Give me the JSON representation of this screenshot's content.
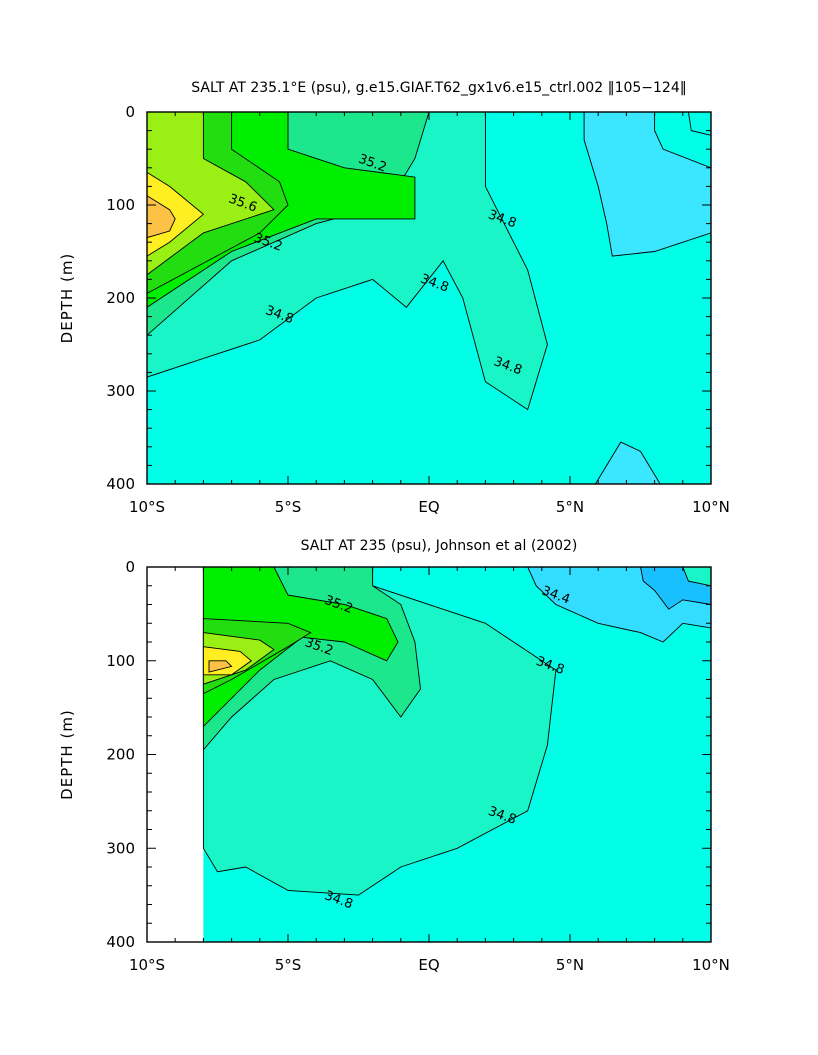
{
  "chart_data": [
    {
      "type": "heatmap",
      "title": "SALT AT 235.1°E (psu), g.e15.GIAF.T62_gx1v6.e15_ctrl.002 ‖105−124‖",
      "ylabel": "DEPTH (m)",
      "xlabel": "",
      "xlim": [
        -10,
        10
      ],
      "ylim": [
        400,
        0
      ],
      "x_ticks": [
        -10,
        -5,
        0,
        5,
        10
      ],
      "x_tick_labels": [
        "10°S",
        "5°S",
        "EQ",
        "5°N",
        "10°N"
      ],
      "y_ticks": [
        0,
        100,
        200,
        300,
        400
      ],
      "y_tick_labels": [
        "0",
        "100",
        "200",
        "300",
        "400"
      ],
      "contour_labels": [
        {
          "text": "35.6",
          "lat": -6.6,
          "depth": 98
        },
        {
          "text": "35.2",
          "lat": -2.0,
          "depth": 55
        },
        {
          "text": "35.2",
          "lat": -5.7,
          "depth": 140
        },
        {
          "text": "34.8",
          "lat": 2.6,
          "depth": 115
        },
        {
          "text": "34.8",
          "lat": -5.3,
          "depth": 218
        },
        {
          "text": "34.8",
          "lat": 0.2,
          "depth": 184
        },
        {
          "text": "34.8",
          "lat": 2.8,
          "depth": 273
        }
      ],
      "levels": [
        {
          "value": 34.4,
          "color": "#3be6ff"
        },
        {
          "value": 34.8,
          "color": "#19f5c7"
        },
        {
          "value": 35.0,
          "color": "#1de78d"
        },
        {
          "value": 35.2,
          "color": "#00ee00"
        },
        {
          "value": 35.4,
          "color": "#22de11"
        },
        {
          "value": 35.6,
          "color": "#9aef14"
        },
        {
          "value": 35.8,
          "color": "#ffee22"
        },
        {
          "value": 36.0,
          "color": "#fcc245"
        }
      ],
      "background_color": "#00ffe6",
      "regions": [
        {
          "min_value": 34.8,
          "points": [
            [
              -10,
              0
            ],
            [
              2,
              0
            ],
            [
              2,
              80
            ],
            [
              3.5,
              170
            ],
            [
              4.2,
              250
            ],
            [
              3.5,
              320
            ],
            [
              2,
              290
            ],
            [
              1.2,
              200
            ],
            [
              0.5,
              160
            ],
            [
              -0.8,
              210
            ],
            [
              -2,
              180
            ],
            [
              -4,
              200
            ],
            [
              -6,
              245
            ],
            [
              -8,
              265
            ],
            [
              -10,
              285
            ]
          ]
        },
        {
          "min_value": 35.0,
          "points": [
            [
              -10,
              0
            ],
            [
              0,
              0
            ],
            [
              -0.5,
              50
            ],
            [
              -1.5,
              100
            ],
            [
              -4,
              120
            ],
            [
              -7,
              160
            ],
            [
              -10,
              240
            ]
          ]
        },
        {
          "min_value": 35.2,
          "points": [
            [
              -10,
              0
            ],
            [
              -5,
              0
            ],
            [
              -5,
              40
            ],
            [
              -3,
              60
            ],
            [
              -0.5,
              70
            ],
            [
              -0.5,
              115
            ],
            [
              -4,
              115
            ],
            [
              -7,
              150
            ],
            [
              -10,
              210
            ]
          ]
        },
        {
          "min_value": 35.4,
          "points": [
            [
              -10,
              0
            ],
            [
              -7,
              0
            ],
            [
              -7,
              40
            ],
            [
              -5.3,
              75
            ],
            [
              -5,
              100
            ],
            [
              -6,
              130
            ],
            [
              -10,
              195
            ]
          ]
        },
        {
          "min_value": 35.6,
          "points": [
            [
              -10,
              0
            ],
            [
              -8,
              0
            ],
            [
              -8,
              50
            ],
            [
              -6.5,
              75
            ],
            [
              -5.5,
              105
            ],
            [
              -8,
              130
            ],
            [
              -10,
              175
            ]
          ]
        },
        {
          "min_value": 35.8,
          "points": [
            [
              -10,
              65
            ],
            [
              -9.2,
              80
            ],
            [
              -8,
              110
            ],
            [
              -9.2,
              140
            ],
            [
              -10,
              155
            ]
          ]
        },
        {
          "min_value": 36.0,
          "points": [
            [
              -10,
              90
            ],
            [
              -9.2,
              105
            ],
            [
              -9,
              115
            ],
            [
              -9.2,
              128
            ],
            [
              -10,
              135
            ]
          ]
        },
        {
          "min_value": 34.4,
          "points": [
            [
              5.5,
              0
            ],
            [
              10,
              0
            ],
            [
              10,
              130
            ],
            [
              8,
              150
            ],
            [
              6.5,
              155
            ],
            [
              6.3,
              120
            ],
            [
              6,
              80
            ],
            [
              5.5,
              30
            ]
          ]
        },
        {
          "min_value": 34.4,
          "points": [
            [
              5.9,
              400
            ],
            [
              6.8,
              355
            ],
            [
              7.5,
              365
            ],
            [
              8.2,
              400
            ]
          ]
        },
        {
          "min_value": 34.2,
          "points": [
            [
              8,
              0
            ],
            [
              10,
              0
            ],
            [
              10,
              60
            ],
            [
              8.3,
              40
            ],
            [
              8,
              20
            ]
          ]
        },
        {
          "min_value": 34.0,
          "points": [
            [
              9.2,
              0
            ],
            [
              10,
              0
            ],
            [
              10,
              25
            ],
            [
              9.3,
              20
            ]
          ]
        }
      ]
    },
    {
      "type": "heatmap",
      "title": "SALT AT 235 (psu), Johnson et al (2002)",
      "ylabel": "DEPTH (m)",
      "xlabel": "",
      "xlim": [
        -10,
        10
      ],
      "ylim": [
        400,
        0
      ],
      "x_ticks": [
        -10,
        -5,
        0,
        5,
        10
      ],
      "x_tick_labels": [
        "10°S",
        "5°S",
        "EQ",
        "5°N",
        "10°N"
      ],
      "y_ticks": [
        0,
        100,
        200,
        300,
        400
      ],
      "y_tick_labels": [
        "0",
        "100",
        "200",
        "300",
        "400"
      ],
      "data_xmin": -8,
      "contour_labels": [
        {
          "text": "35.2",
          "lat": -3.2,
          "depth": 40
        },
        {
          "text": "35.2",
          "lat": -3.9,
          "depth": 85
        },
        {
          "text": "34.4",
          "lat": 4.5,
          "depth": 30
        },
        {
          "text": "34.8",
          "lat": 4.3,
          "depth": 105
        },
        {
          "text": "34.8",
          "lat": 2.6,
          "depth": 265
        },
        {
          "text": "34.8",
          "lat": -3.2,
          "depth": 355
        }
      ],
      "levels": [
        {
          "value": 34.2,
          "color": "#3be6ff"
        },
        {
          "value": 34.4,
          "color": "#33ddff"
        },
        {
          "value": 34.6,
          "color": "#19c0ff"
        },
        {
          "value": 34.8,
          "color": "#19f5c7"
        },
        {
          "value": 35.0,
          "color": "#1de78d"
        },
        {
          "value": 35.2,
          "color": "#00ee00"
        },
        {
          "value": 35.4,
          "color": "#22de11"
        },
        {
          "value": 35.6,
          "color": "#9aef14"
        },
        {
          "value": 35.8,
          "color": "#ffee22"
        },
        {
          "value": 36.0,
          "color": "#fcc245"
        }
      ],
      "background_color": "#00ffe6",
      "regions": [
        {
          "min_value": 34.8,
          "points": [
            [
              -8,
              0
            ],
            [
              -2,
              0
            ],
            [
              -2,
              20
            ],
            [
              2,
              60
            ],
            [
              4.5,
              110
            ],
            [
              4.2,
              190
            ],
            [
              3.5,
              260
            ],
            [
              1,
              300
            ],
            [
              -1,
              320
            ],
            [
              -2.5,
              350
            ],
            [
              -5,
              345
            ],
            [
              -6.5,
              320
            ],
            [
              -7.5,
              325
            ],
            [
              -8,
              300
            ]
          ]
        },
        {
          "min_value": 35.0,
          "points": [
            [
              -8,
              0
            ],
            [
              -2,
              0
            ],
            [
              -2,
              20
            ],
            [
              -1,
              40
            ],
            [
              -0.5,
              80
            ],
            [
              -0.3,
              130
            ],
            [
              -1,
              160
            ],
            [
              -2,
              120
            ],
            [
              -3.5,
              100
            ],
            [
              -5.5,
              120
            ],
            [
              -7,
              160
            ],
            [
              -8,
              195
            ]
          ]
        },
        {
          "min_value": 35.2,
          "points": [
            [
              -8,
              0
            ],
            [
              -5.5,
              0
            ],
            [
              -5,
              30
            ],
            [
              -3,
              40
            ],
            [
              -1.5,
              55
            ],
            [
              -1.1,
              80
            ],
            [
              -1.5,
              100
            ],
            [
              -3,
              80
            ],
            [
              -4.5,
              75
            ],
            [
              -6,
              110
            ],
            [
              -8,
              170
            ]
          ]
        },
        {
          "min_value": 35.4,
          "points": [
            [
              -8,
              55
            ],
            [
              -5,
              60
            ],
            [
              -4.2,
              70
            ],
            [
              -5,
              85
            ],
            [
              -7,
              120
            ],
            [
              -8,
              135
            ]
          ]
        },
        {
          "min_value": 35.6,
          "points": [
            [
              -8,
              70
            ],
            [
              -6,
              78
            ],
            [
              -5.5,
              88
            ],
            [
              -6.5,
              110
            ],
            [
              -8,
              125
            ]
          ]
        },
        {
          "min_value": 35.8,
          "points": [
            [
              -8,
              85
            ],
            [
              -6.7,
              90
            ],
            [
              -6.3,
              100
            ],
            [
              -7,
              115
            ],
            [
              -8,
              115
            ]
          ]
        },
        {
          "min_value": 36.0,
          "points": [
            [
              -7.8,
              100
            ],
            [
              -7.2,
              100
            ],
            [
              -7.0,
              106
            ],
            [
              -7.8,
              112
            ]
          ]
        },
        {
          "min_value": 34.4,
          "points": [
            [
              3.5,
              0
            ],
            [
              10,
              0
            ],
            [
              10,
              65
            ],
            [
              9,
              60
            ],
            [
              8.3,
              80
            ],
            [
              7.5,
              70
            ],
            [
              6,
              60
            ],
            [
              4.5,
              40
            ],
            [
              3.8,
              20
            ]
          ]
        },
        {
          "min_value": 34.6,
          "points": [
            [
              7.5,
              0
            ],
            [
              10,
              0
            ],
            [
              10,
              40
            ],
            [
              9,
              35
            ],
            [
              8.5,
              45
            ],
            [
              8,
              25
            ],
            [
              7.6,
              15
            ]
          ]
        },
        {
          "min_value": 34.8,
          "points": [
            [
              9,
              0
            ],
            [
              10,
              0
            ],
            [
              10,
              20
            ],
            [
              9.2,
              15
            ]
          ]
        }
      ]
    }
  ]
}
